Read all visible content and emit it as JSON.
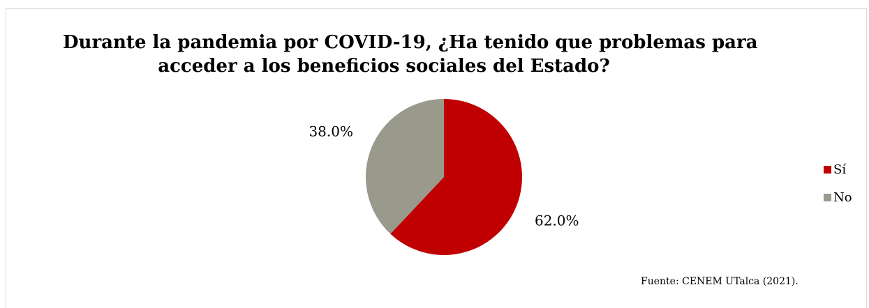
{
  "chart_data": {
    "type": "pie",
    "title_lines": [
      "Durante la pandemia por COVID-19, ¿Ha tenido que problemas para",
      "acceder a los beneficios sociales del Estado?"
    ],
    "slices": [
      {
        "label": "Sí",
        "value": 62.0,
        "display": "62.0%",
        "color": "#c00000"
      },
      {
        "label": "No",
        "value": 38.0,
        "display": "38.0%",
        "color": "#999a8b"
      }
    ],
    "legend_position": "right",
    "source": "Fuente: CENEM UTalca (2021)."
  }
}
